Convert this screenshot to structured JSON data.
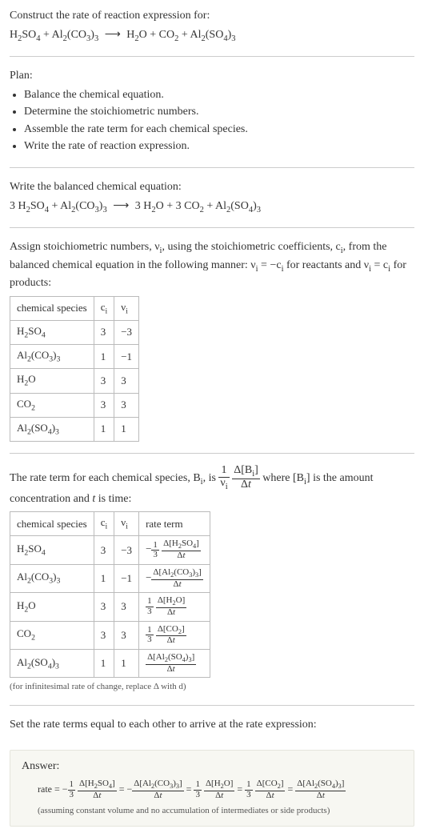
{
  "prompt": {
    "title": "Construct the rate of reaction expression for:",
    "equation_html": "H<span class='sub'>2</span>SO<span class='sub'>4</span> + Al<span class='sub'>2</span>(CO<span class='sub'>3</span>)<span class='sub'>3</span> <span class='arrow'>⟶</span> H<span class='sub'>2</span>O + CO<span class='sub'>2</span> + Al<span class='sub'>2</span>(SO<span class='sub'>4</span>)<span class='sub'>3</span>"
  },
  "plan": {
    "title": "Plan:",
    "items": [
      "Balance the chemical equation.",
      "Determine the stoichiometric numbers.",
      "Assemble the rate term for each chemical species.",
      "Write the rate of reaction expression."
    ]
  },
  "balanced": {
    "title": "Write the balanced chemical equation:",
    "equation_html": "3 H<span class='sub'>2</span>SO<span class='sub'>4</span> + Al<span class='sub'>2</span>(CO<span class='sub'>3</span>)<span class='sub'>3</span> <span class='arrow'>⟶</span> 3 H<span class='sub'>2</span>O + 3 CO<span class='sub'>2</span> + Al<span class='sub'>2</span>(SO<span class='sub'>4</span>)<span class='sub'>3</span>"
  },
  "stoich": {
    "intro_html": "Assign stoichiometric numbers, ν<span class='sub'>i</span>, using the stoichiometric coefficients, c<span class='sub'>i</span>, from the balanced chemical equation in the following manner: ν<span class='sub'>i</span> = −c<span class='sub'>i</span> for reactants and ν<span class='sub'>i</span> = c<span class='sub'>i</span> for products:",
    "headers": [
      "chemical species",
      "c_i",
      "ν_i"
    ],
    "header_html": [
      "chemical species",
      "c<span class='sub'>i</span>",
      "ν<span class='sub'>i</span>"
    ],
    "rows": [
      {
        "species_html": "H<span class='sub'>2</span>SO<span class='sub'>4</span>",
        "c": "3",
        "v": "−3"
      },
      {
        "species_html": "Al<span class='sub'>2</span>(CO<span class='sub'>3</span>)<span class='sub'>3</span>",
        "c": "1",
        "v": "−1"
      },
      {
        "species_html": "H<span class='sub'>2</span>O",
        "c": "3",
        "v": "3"
      },
      {
        "species_html": "CO<span class='sub'>2</span>",
        "c": "3",
        "v": "3"
      },
      {
        "species_html": "Al<span class='sub'>2</span>(SO<span class='sub'>4</span>)<span class='sub'>3</span>",
        "c": "1",
        "v": "1"
      }
    ]
  },
  "rateterm": {
    "intro_pre_html": "The rate term for each chemical species, B<span class='sub'>i</span>, is ",
    "intro_post_html": " where [B<span class='sub'>i</span>] is the amount concentration and <i>t</i> is time:",
    "frac1": {
      "num_html": "1",
      "den_html": "ν<span class='sub'>i</span>"
    },
    "frac2": {
      "num_html": "Δ[B<span class='sub'>i</span>]",
      "den_html": "Δ<i>t</i>"
    },
    "header_html": [
      "chemical species",
      "c<span class='sub'>i</span>",
      "ν<span class='sub'>i</span>",
      "rate term"
    ],
    "rows": [
      {
        "species_html": "H<span class='sub'>2</span>SO<span class='sub'>4</span>",
        "c": "3",
        "v": "−3",
        "rate_html": "−<span class='frac'><span class='num'>1</span><span class='den'>3</span></span> <span class='frac'><span class='num'>Δ[H<span class=\"sub\">2</span>SO<span class=\"sub\">4</span>]</span><span class='den'>Δ<i>t</i></span></span>"
      },
      {
        "species_html": "Al<span class='sub'>2</span>(CO<span class='sub'>3</span>)<span class='sub'>3</span>",
        "c": "1",
        "v": "−1",
        "rate_html": "−<span class='frac'><span class='num'>Δ[Al<span class=\"sub\">2</span>(CO<span class=\"sub\">3</span>)<span class=\"sub\">3</span>]</span><span class='den'>Δ<i>t</i></span></span>"
      },
      {
        "species_html": "H<span class='sub'>2</span>O",
        "c": "3",
        "v": "3",
        "rate_html": "<span class='frac'><span class='num'>1</span><span class='den'>3</span></span> <span class='frac'><span class='num'>Δ[H<span class=\"sub\">2</span>O]</span><span class='den'>Δ<i>t</i></span></span>"
      },
      {
        "species_html": "CO<span class='sub'>2</span>",
        "c": "3",
        "v": "3",
        "rate_html": "<span class='frac'><span class='num'>1</span><span class='den'>3</span></span> <span class='frac'><span class='num'>Δ[CO<span class=\"sub\">2</span>]</span><span class='den'>Δ<i>t</i></span></span>"
      },
      {
        "species_html": "Al<span class='sub'>2</span>(SO<span class='sub'>4</span>)<span class='sub'>3</span>",
        "c": "1",
        "v": "1",
        "rate_html": "<span class='frac'><span class='num'>Δ[Al<span class=\"sub\">2</span>(SO<span class=\"sub\">4</span>)<span class=\"sub\">3</span>]</span><span class='den'>Δ<i>t</i></span></span>"
      }
    ],
    "footnote": "(for infinitesimal rate of change, replace Δ with d)"
  },
  "setequal": {
    "title": "Set the rate terms equal to each other to arrive at the rate expression:"
  },
  "answer": {
    "label": "Answer:",
    "expr_html": "rate = −<span class='frac'><span class='num'>1</span><span class='den'>3</span></span> <span class='frac'><span class='num'>Δ[H<span class=\"sub\">2</span>SO<span class=\"sub\">4</span>]</span><span class='den'>Δ<i>t</i></span></span> = −<span class='frac'><span class='num'>Δ[Al<span class=\"sub\">2</span>(CO<span class=\"sub\">3</span>)<span class=\"sub\">3</span>]</span><span class='den'>Δ<i>t</i></span></span> = <span class='frac'><span class='num'>1</span><span class='den'>3</span></span> <span class='frac'><span class='num'>Δ[H<span class=\"sub\">2</span>O]</span><span class='den'>Δ<i>t</i></span></span> = <span class='frac'><span class='num'>1</span><span class='den'>3</span></span> <span class='frac'><span class='num'>Δ[CO<span class=\"sub\">2</span>]</span><span class='den'>Δ<i>t</i></span></span> = <span class='frac'><span class='num'>Δ[Al<span class=\"sub\">2</span>(SO<span class=\"sub\">4</span>)<span class=\"sub\">3</span>]</span><span class='den'>Δ<i>t</i></span></span>",
    "note": "(assuming constant volume and no accumulation of intermediates or side products)"
  }
}
